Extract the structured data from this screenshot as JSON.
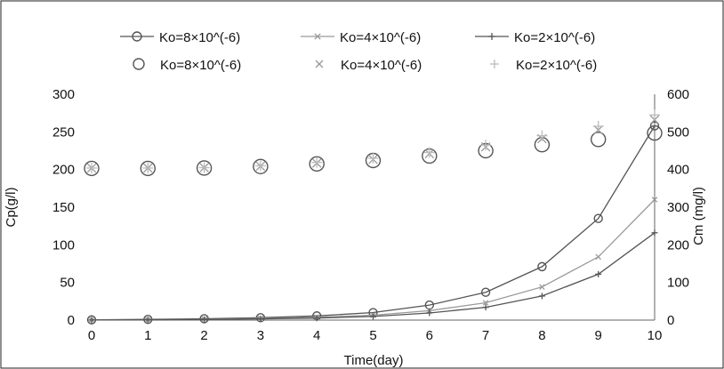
{
  "chart_data": {
    "type": "scatter",
    "xlabel": "Time(day)",
    "ylabel_left": "Cp(g/l)",
    "ylabel_right": "Cm (mg/l)",
    "x_ticks": [
      0,
      1,
      2,
      3,
      4,
      5,
      6,
      7,
      8,
      9,
      10
    ],
    "y_left_ticks": [
      0,
      50,
      100,
      150,
      200,
      250,
      300
    ],
    "y_right_ticks": [
      0,
      100,
      200,
      300,
      400,
      500,
      600
    ],
    "xlim": [
      0,
      10
    ],
    "ylim_left": [
      0,
      300
    ],
    "ylim_right": [
      0,
      600
    ],
    "grid": false,
    "legend_position": "top",
    "x": [
      0,
      1,
      2,
      3,
      4,
      5,
      6,
      7,
      8,
      9,
      10
    ],
    "series": [
      {
        "name": "Ko=8×10^(-6)",
        "axis": "left",
        "style": "line-circle",
        "color": "#555555",
        "values": [
          0.3,
          1,
          1.8,
          3.2,
          5.6,
          10,
          20,
          37,
          71,
          135,
          258
        ]
      },
      {
        "name": "Ko=4×10^(-6)",
        "axis": "left",
        "style": "line-x",
        "color": "#999999",
        "values": [
          0.2,
          0.6,
          1.2,
          2.2,
          3.8,
          6.5,
          12.5,
          23,
          44,
          84,
          160
        ]
      },
      {
        "name": "Ko=2×10^(-6)",
        "axis": "left",
        "style": "line-plus",
        "color": "#555555",
        "values": [
          0.1,
          0.4,
          0.9,
          1.6,
          2.7,
          4.8,
          9.5,
          17,
          32,
          61,
          116
        ]
      },
      {
        "name": "Ko=8×10^(-6)",
        "axis": "right",
        "style": "marker-circle",
        "color": "#555555",
        "values": [
          403,
          403,
          404,
          408,
          415,
          424,
          436,
          450,
          466,
          480,
          497
        ]
      },
      {
        "name": "Ko=4×10^(-6)",
        "axis": "right",
        "style": "marker-x",
        "color": "#999999",
        "values": [
          404,
          404,
          405,
          409,
          417,
          427,
          442,
          460,
          482,
          505,
          532
        ]
      },
      {
        "name": "Ko=2×10^(-6)",
        "axis": "right",
        "style": "marker-plus",
        "color": "#bbbbbb",
        "values": [
          404,
          404,
          405,
          410,
          419,
          430,
          445,
          465,
          490,
          515,
          545
        ]
      }
    ]
  }
}
